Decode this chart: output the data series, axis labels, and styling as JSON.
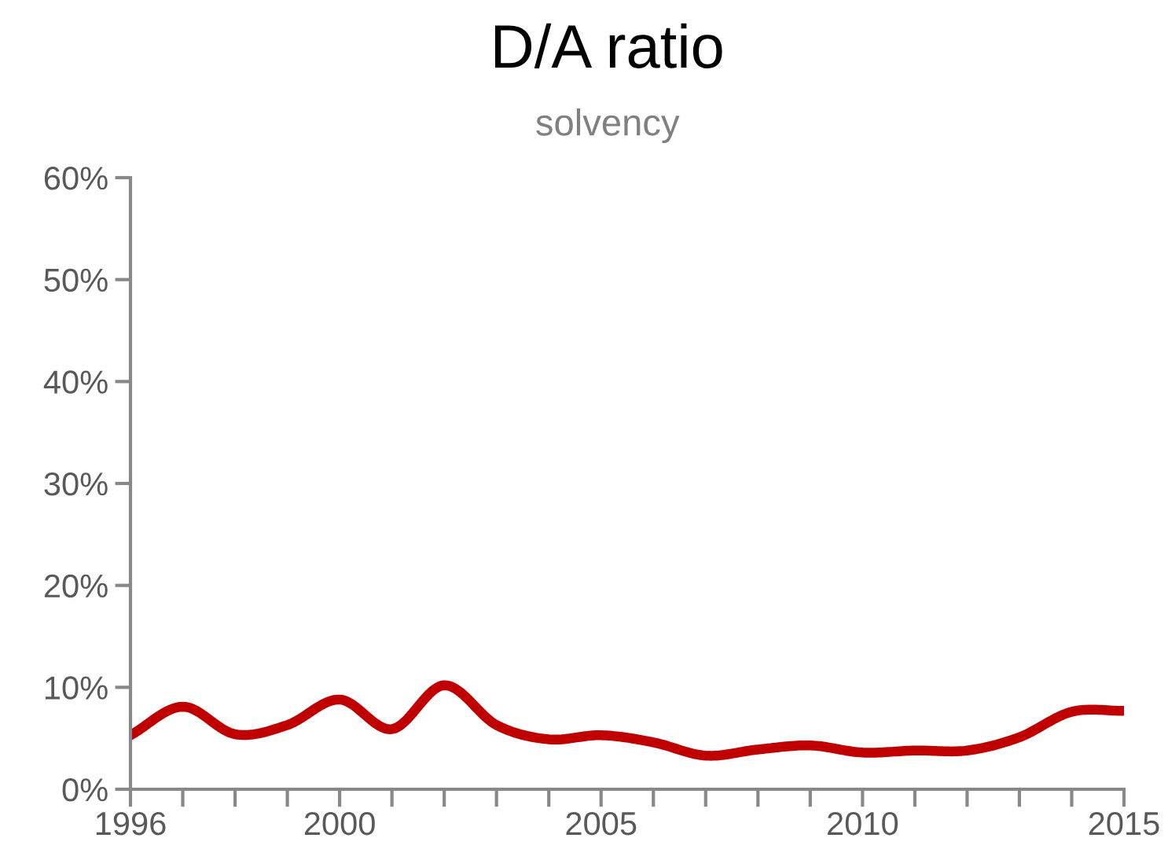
{
  "chart_data": {
    "type": "line",
    "title": "D/A ratio",
    "subtitle": "solvency",
    "x": [
      1996,
      1997,
      1998,
      1999,
      2000,
      2001,
      2002,
      2003,
      2004,
      2005,
      2006,
      2007,
      2008,
      2009,
      2010,
      2011,
      2012,
      2013,
      2014,
      2015
    ],
    "series": [
      {
        "color": "#c00000",
        "values": [
          5.3,
          8.1,
          5.4,
          6.3,
          8.8,
          5.9,
          10.2,
          6.3,
          4.9,
          5.3,
          4.6,
          3.3,
          3.9,
          4.3,
          3.6,
          3.8,
          3.8,
          5.1,
          7.6,
          7.7
        ]
      }
    ],
    "xlim": [
      1996,
      2015
    ],
    "xticks": [
      1996,
      {
        "value": 1997,
        "label": null
      },
      {
        "value": 1998,
        "label": null
      },
      {
        "value": 1999,
        "label": null
      },
      2000,
      {
        "value": 2001,
        "label": null
      },
      {
        "value": 2002,
        "label": null
      },
      {
        "value": 2003,
        "label": null
      },
      {
        "value": 2004,
        "label": null
      },
      2005,
      {
        "value": 2006,
        "label": null
      },
      {
        "value": 2007,
        "label": null
      },
      {
        "value": 2008,
        "label": null
      },
      {
        "value": 2009,
        "label": null
      },
      2010,
      {
        "value": 2011,
        "label": null
      },
      {
        "value": 2012,
        "label": null
      },
      {
        "value": 2013,
        "label": null
      },
      {
        "value": 2014,
        "label": null
      },
      2015
    ],
    "ylim": [
      0,
      60
    ],
    "yticks": [
      {
        "value": 0,
        "label": "0%"
      },
      {
        "value": 10,
        "label": "10%"
      },
      {
        "value": 20,
        "label": "20%"
      },
      {
        "value": 30,
        "label": "30%"
      },
      {
        "value": 40,
        "label": "40%"
      },
      {
        "value": 50,
        "label": "50%"
      },
      {
        "value": 60,
        "label": "60%"
      }
    ],
    "grid": false,
    "marker": "none",
    "line_style": "solid"
  }
}
